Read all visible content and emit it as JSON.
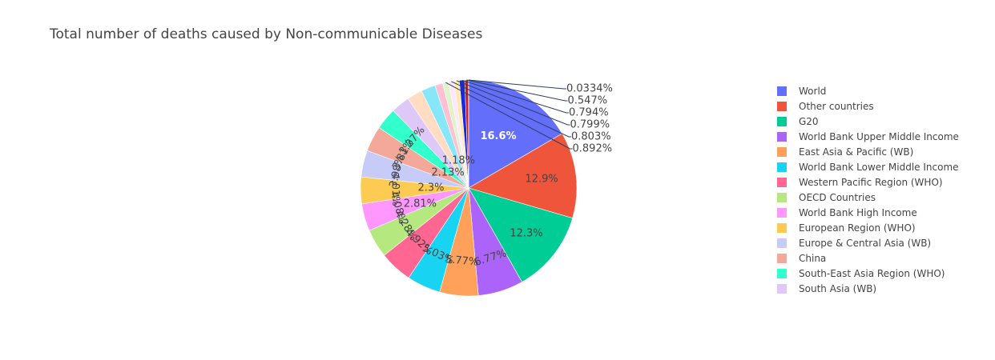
{
  "chart_data": {
    "type": "pie",
    "title": "Total number of deaths caused by Non-communicable Diseases",
    "legend_position": "right",
    "slices": [
      {
        "label": "World",
        "percent_text": "16.6%",
        "percent": 16.6,
        "color": "#636efa",
        "in_legend": true
      },
      {
        "label": "Other countries",
        "percent_text": "12.9%",
        "percent": 12.9,
        "color": "#EF553B",
        "in_legend": true
      },
      {
        "label": "G20",
        "percent_text": "12.3%",
        "percent": 12.3,
        "color": "#00cc96",
        "in_legend": true
      },
      {
        "label": "World Bank Upper Middle Income",
        "percent_text": "6.77%",
        "percent": 6.77,
        "color": "#ab63fa",
        "in_legend": true
      },
      {
        "label": "East Asia & Pacific (WB)",
        "percent_text": "5.77%",
        "percent": 5.77,
        "color": "#FFA15A",
        "in_legend": true
      },
      {
        "label": "World Bank Lower Middle Income",
        "percent_text": "5.03%",
        "percent": 5.03,
        "color": "#19d3f3",
        "in_legend": true
      },
      {
        "label": "Western Pacific Region (WHO)",
        "percent_text": "4.92%",
        "percent": 4.92,
        "color": "#FF6692",
        "in_legend": true
      },
      {
        "label": "OECD Countries",
        "percent_text": "4.28%",
        "percent": 4.28,
        "color": "#B6E880",
        "in_legend": true
      },
      {
        "label": "World Bank High Income",
        "percent_text": "4.08%",
        "percent": 4.08,
        "color": "#FF97FF",
        "in_legend": true
      },
      {
        "label": "European Region (WHO)",
        "percent_text": "4.01%",
        "percent": 4.01,
        "color": "#FECB52",
        "in_legend": true
      },
      {
        "label": "Europe & Central Asia (WB)",
        "percent_text": "3.98%",
        "percent": 3.98,
        "color": "#c6cbf7",
        "in_legend": true
      },
      {
        "label": "China",
        "percent_text": "3.81%",
        "percent": 3.81,
        "color": "#f4a899",
        "in_legend": true
      },
      {
        "label": "South-East Asia Region (WHO)",
        "percent_text": "3.27%",
        "percent": 3.27,
        "color": "#33ffcc",
        "in_legend": true
      },
      {
        "label": "South Asia (WB)",
        "percent_text": "2.81%",
        "percent": 2.81,
        "color": "#ddc8f7",
        "in_legend": true
      },
      {
        "label": "",
        "percent_text": "2.3%",
        "percent": 2.3,
        "color": "#ffdcc2",
        "in_legend": false
      },
      {
        "label": "",
        "percent_text": "2.13%",
        "percent": 2.13,
        "color": "#87e7f8",
        "in_legend": false
      },
      {
        "label": "",
        "percent_text": "1.18%",
        "percent": 1.18,
        "color": "#ffc0d4",
        "in_legend": false
      },
      {
        "label": "",
        "percent_text": "0.892%",
        "percent": 0.892,
        "color": "#e0f4c9",
        "in_legend": false
      },
      {
        "label": "",
        "percent_text": "0.803%",
        "percent": 0.803,
        "color": "#ffe6ff",
        "in_legend": false
      },
      {
        "label": "",
        "percent_text": "0.799%",
        "percent": 0.799,
        "color": "#fee8ae",
        "in_legend": false
      },
      {
        "label": "",
        "percent_text": "0.794%",
        "percent": 0.794,
        "color": "#1a27e0",
        "in_legend": false
      },
      {
        "label": "",
        "percent_text": "0.547%",
        "percent": 0.547,
        "color": "#c4201d",
        "in_legend": false
      },
      {
        "label": "",
        "percent_text": "0.0334%",
        "percent": 0.0334,
        "color": "#0a6b4d",
        "in_legend": false
      }
    ]
  }
}
